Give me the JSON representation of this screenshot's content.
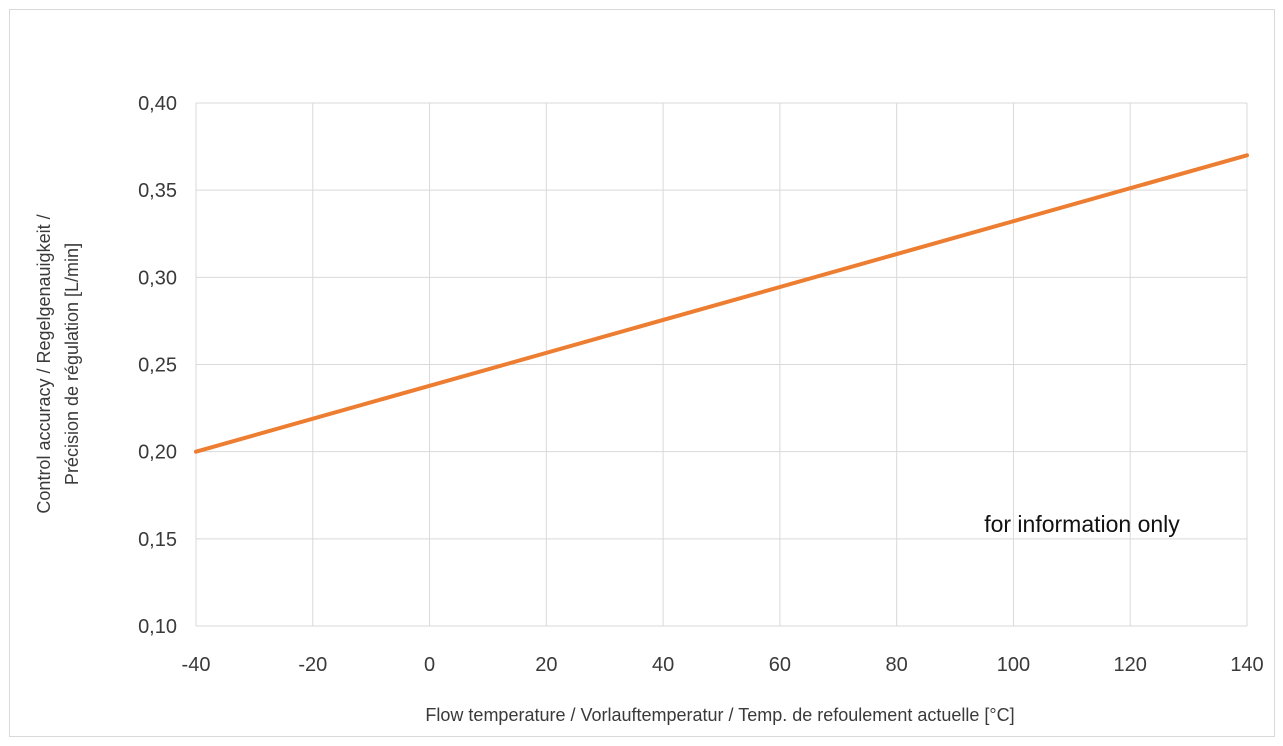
{
  "chart_data": {
    "type": "line",
    "title": "",
    "xlabel": "Flow temperature / Vorlauftemperatur / Temp. de refoulement actuelle [°C]",
    "ylabel_lines": [
      "Control accuracy / Regelgenauigkeit /",
      "Précision de régulation [L/min]"
    ],
    "xlim": [
      -40,
      140
    ],
    "ylim": [
      0.1,
      0.4
    ],
    "x_ticks": [
      -40,
      -20,
      0,
      20,
      40,
      60,
      80,
      100,
      120,
      140
    ],
    "x_tick_labels": [
      "-40",
      "-20",
      "0",
      "20",
      "40",
      "60",
      "80",
      "100",
      "120",
      "140"
    ],
    "y_ticks": [
      0.1,
      0.15,
      0.2,
      0.25,
      0.3,
      0.35,
      0.4
    ],
    "y_tick_labels": [
      "0,10",
      "0,15",
      "0,20",
      "0,25",
      "0,30",
      "0,35",
      "0,40"
    ],
    "grid": true,
    "legend": "none",
    "annotation": "for information only",
    "series": [
      {
        "color": "#ed7d31",
        "x": [
          -40,
          140
        ],
        "y": [
          0.2,
          0.37
        ]
      }
    ]
  }
}
